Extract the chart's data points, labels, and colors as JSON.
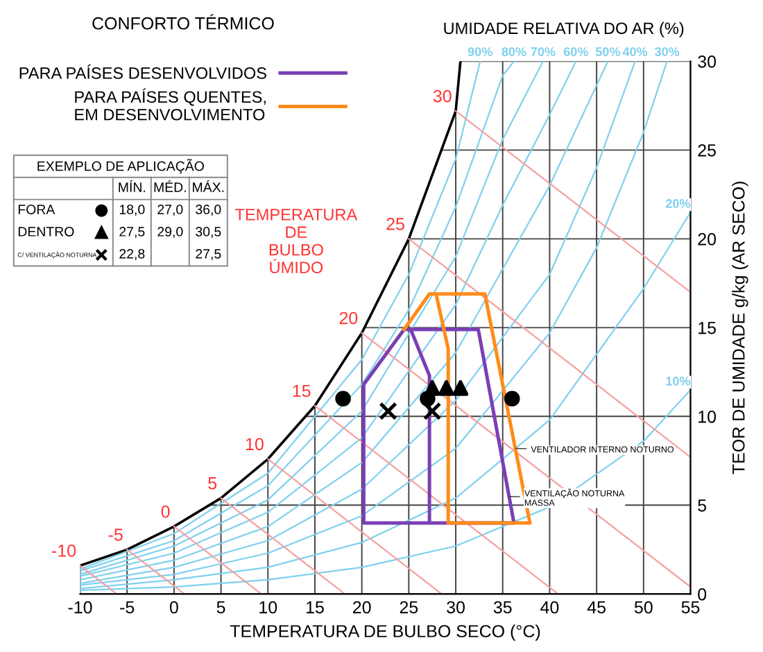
{
  "chart_data": {
    "type": "line",
    "title": "CONFORTO TÉRMICO",
    "xlabel": "TEMPERATURA DE BULBO SECO (°C)",
    "ylabel": "TEOR DE UMIDADE g/kg (AR SECO)",
    "xlim": [
      -10,
      55
    ],
    "ylim": [
      0,
      30
    ],
    "xticks": [
      -10,
      -5,
      0,
      5,
      10,
      15,
      20,
      25,
      30,
      35,
      40,
      45,
      50,
      55
    ],
    "yticks": [
      0,
      5,
      10,
      15,
      20,
      25,
      30
    ],
    "grid": true,
    "legend": "top left",
    "line_style": "solid",
    "marker": "none",
    "series": [
      {
        "color": "#000000",
        "x": [
          -10,
          -5,
          0,
          5,
          10,
          15,
          20,
          25,
          30,
          30.5
        ],
        "values": [
          1.6,
          2.5,
          3.8,
          5.4,
          7.6,
          10.6,
          14.7,
          20,
          27.2,
          30
        ]
      },
      {
        "name": "90%",
        "color": "#7fd0ee",
        "x": [
          -10,
          0,
          10,
          20,
          25,
          30,
          32.6
        ],
        "values": [
          1.4,
          3.4,
          6.8,
          13.2,
          18,
          24.5,
          30
        ]
      },
      {
        "name": "80%",
        "color": "#7fd0ee",
        "x": [
          -10,
          0,
          10,
          20,
          25,
          30,
          35,
          36.2
        ],
        "values": [
          1.3,
          3,
          6.1,
          11.8,
          16,
          21.8,
          29.2,
          30
        ]
      },
      {
        "name": "70%",
        "color": "#7fd0ee",
        "x": [
          -10,
          0,
          10,
          20,
          30,
          35,
          39.3
        ],
        "values": [
          1.1,
          2.7,
          5.3,
          10.3,
          19,
          25.6,
          30
        ]
      },
      {
        "name": "60%",
        "color": "#7fd0ee",
        "x": [
          -10,
          0,
          10,
          20,
          30,
          35,
          40,
          42.8
        ],
        "values": [
          1,
          2.3,
          4.6,
          8.8,
          16.3,
          21.9,
          27,
          30
        ]
      },
      {
        "name": "50%",
        "color": "#7fd0ee",
        "x": [
          -10,
          0,
          10,
          20,
          30,
          40,
          46.2
        ],
        "values": [
          0.8,
          1.9,
          3.8,
          7.4,
          13.6,
          23,
          30
        ]
      },
      {
        "name": "40%",
        "color": "#7fd0ee",
        "x": [
          -10,
          0,
          10,
          20,
          30,
          40,
          45,
          49.1
        ],
        "values": [
          0.6,
          1.5,
          3,
          5.9,
          10.9,
          18,
          24,
          30
        ]
      },
      {
        "name": "30%",
        "color": "#7fd0ee",
        "x": [
          -10,
          0,
          10,
          20,
          30,
          40,
          45,
          50,
          52.5
        ],
        "values": [
          0.5,
          1.1,
          2.3,
          4.4,
          8.2,
          14.7,
          19.5,
          26,
          30
        ]
      },
      {
        "name": "20%",
        "color": "#7fd0ee",
        "x": [
          -10,
          0,
          10,
          20,
          30,
          40,
          50,
          55
        ],
        "values": [
          0.3,
          0.8,
          1.5,
          2.9,
          5.4,
          9.8,
          17.2,
          21.5
        ]
      },
      {
        "name": "10%",
        "color": "#7fd0ee",
        "x": [
          -10,
          0,
          10,
          20,
          30,
          40,
          50,
          55
        ],
        "values": [
          0.2,
          0.4,
          0.8,
          1.5,
          2.7,
          4.9,
          8.6,
          11.5
        ]
      },
      {
        "name": "-10",
        "color": "#f4a0a0",
        "x": [
          -10,
          -6.1
        ],
        "values": [
          1.6,
          0
        ]
      },
      {
        "name": "-5",
        "color": "#f4a0a0",
        "x": [
          -5,
          1.1
        ],
        "values": [
          2.5,
          0
        ]
      },
      {
        "name": "0",
        "color": "#f4a0a0",
        "x": [
          0,
          9.3
        ],
        "values": [
          3.8,
          0
        ]
      },
      {
        "name": "5",
        "color": "#f4a0a0",
        "x": [
          5,
          18.2
        ],
        "values": [
          5.4,
          0
        ]
      },
      {
        "name": "10",
        "color": "#f4a0a0",
        "x": [
          10,
          28.5
        ],
        "values": [
          7.6,
          0
        ]
      },
      {
        "name": "15",
        "color": "#f4a0a0",
        "x": [
          15,
          40.9
        ],
        "values": [
          10.6,
          0
        ]
      },
      {
        "name": "20",
        "color": "#f4a0a0",
        "x": [
          20,
          55
        ],
        "values": [
          14.7,
          0.4
        ]
      },
      {
        "name": "25",
        "color": "#f4a0a0",
        "x": [
          25,
          55
        ],
        "values": [
          20,
          7.7
        ]
      },
      {
        "name": "30",
        "color": "#f4a0a0",
        "x": [
          30,
          55
        ],
        "values": [
          27.2,
          17
        ]
      },
      {
        "name": "PARA PAÍSES DESENVOLVIDOS",
        "color": "#7a3fb5",
        "x": [
          27.2,
          27.2,
          25.2,
          24.5,
          20.2,
          20.2,
          36.2,
          32.4,
          24.5
        ],
        "values": [
          4,
          12.3,
          14.9,
          14.9,
          11.8,
          4,
          4,
          14.9,
          14.9
        ]
      },
      {
        "name": "PARA PAÍSES QUENTES,\nEM DESENVOLVIMENTO",
        "color": "#ff8c1a",
        "x": [
          24.5,
          27.2,
          33.1,
          37.9,
          29.2,
          29.2,
          27.9
        ],
        "values": [
          14.9,
          16.9,
          16.9,
          4,
          4,
          13.8,
          16.9
        ]
      },
      {
        "name": "FORA",
        "type": "scatter",
        "marker": "circle",
        "color": "#000000",
        "x": [
          18,
          27,
          36
        ],
        "values": [
          11,
          11,
          11
        ]
      },
      {
        "name": "DENTRO",
        "type": "scatter",
        "marker": "triangle",
        "color": "#000000",
        "x": [
          27.5,
          29,
          30.5
        ],
        "values": [
          11.6,
          11.6,
          11.6
        ]
      },
      {
        "name": "C/ VENTILAÇÃO NOTURNA",
        "type": "scatter",
        "marker": "cross",
        "color": "#000000",
        "x": [
          22.8,
          27.5
        ],
        "values": [
          10.3,
          10.3
        ]
      }
    ],
    "annotations": [
      "UMIDADE RELATIVA DO AR (%)",
      "TEMPERATURA\nDE\nBULBO\nÚMIDO",
      {
        "text": "VENTILADOR INTERNO NOTURNO",
        "x": 36,
        "y": 8.2
      },
      {
        "text": "VENTILAÇÃO NOTURNA\nMASSA",
        "x": 35.3,
        "y": 5.5
      },
      "EXEMPLO DE APLICAÇÃO",
      "MÍN.",
      "MÉD.",
      "MÁX.",
      "18,0",
      "27,0",
      "36,0",
      "27,5",
      "29,0",
      "30,5",
      "22,8",
      "27,5"
    ]
  }
}
